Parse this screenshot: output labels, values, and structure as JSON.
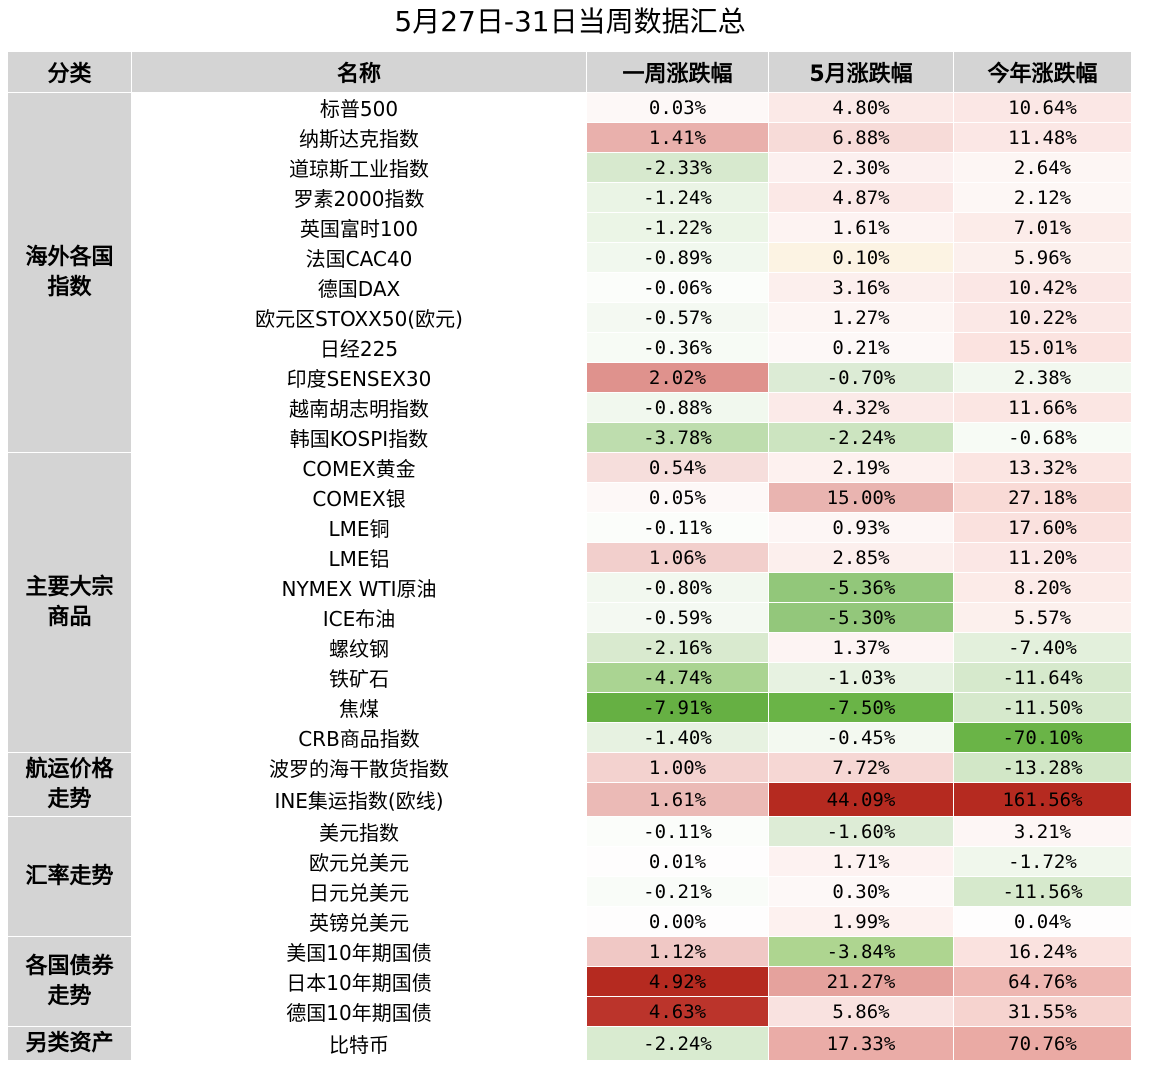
{
  "title": "5月27日-31日当周数据汇总",
  "chart_data": {
    "type": "table",
    "columns": [
      "分类",
      "名称",
      "一周涨跌幅",
      "5月涨跌幅",
      "今年涨跌幅"
    ],
    "groups": [
      {
        "category": "海外各国指数",
        "rows": [
          {
            "name": "标普500",
            "values": [
              "0.03%",
              "4.80%",
              "10.64%"
            ],
            "colors": [
              "#fdf8f7",
              "#fbe9e7",
              "#fbe7e5"
            ]
          },
          {
            "name": "纳斯达克指数",
            "values": [
              "1.41%",
              "6.88%",
              "11.48%"
            ],
            "colors": [
              "#e9b0ac",
              "#f7dbd8",
              "#fbe7e5"
            ]
          },
          {
            "name": "道琼斯工业指数",
            "values": [
              "-2.33%",
              "2.30%",
              "2.64%"
            ],
            "colors": [
              "#d7e9ce",
              "#fcf0ef",
              "#fdf6f4"
            ]
          },
          {
            "name": "罗素2000指数",
            "values": [
              "-1.24%",
              "4.87%",
              "2.12%"
            ],
            "colors": [
              "#eaf4e5",
              "#fbe8e6",
              "#fdf7f5"
            ]
          },
          {
            "name": "英国富时100",
            "values": [
              "-1.22%",
              "1.61%",
              "7.01%"
            ],
            "colors": [
              "#ebf5e6",
              "#fdf3f2",
              "#fcece9"
            ]
          },
          {
            "name": "法国CAC40",
            "values": [
              "-0.89%",
              "0.10%",
              "5.96%"
            ],
            "colors": [
              "#f1f8ee",
              "#fcf3e3",
              "#fcf0ed"
            ]
          },
          {
            "name": "德国DAX",
            "values": [
              "-0.06%",
              "3.16%",
              "10.42%"
            ],
            "colors": [
              "#fbfdfa",
              "#fcefed",
              "#fbe7e5"
            ]
          },
          {
            "name": "欧元区STOXX50(欧元)",
            "values": [
              "-0.57%",
              "1.27%",
              "10.22%"
            ],
            "colors": [
              "#f4f9f2",
              "#fdf5f3",
              "#fbe8e6"
            ]
          },
          {
            "name": "日经225",
            "values": [
              "-0.36%",
              "0.21%",
              "15.01%"
            ],
            "colors": [
              "#f7fbf5",
              "#fdf8f7",
              "#fbe3e0"
            ]
          },
          {
            "name": "印度SENSEX30",
            "values": [
              "2.02%",
              "-0.70%",
              "2.38%"
            ],
            "colors": [
              "#df928d",
              "#dcebd5",
              "#f2f8ef"
            ]
          },
          {
            "name": "越南胡志明指数",
            "values": [
              "-0.88%",
              "4.32%",
              "11.66%"
            ],
            "colors": [
              "#f1f8ee",
              "#fbeae8",
              "#fbe6e3"
            ]
          },
          {
            "name": "韩国KOSPI指数",
            "values": [
              "-3.78%",
              "-2.24%",
              "-0.68%"
            ],
            "colors": [
              "#bedd ae",
              "#cce4c0",
              "#f7fbf5"
            ]
          }
        ]
      },
      {
        "category": "主要大宗商品",
        "rows": [
          {
            "name": "COMEX黄金",
            "values": [
              "0.54%",
              "2.19%",
              "13.32%"
            ],
            "colors": [
              "#f6dedc",
              "#fdf1ef",
              "#fbe5e2"
            ]
          },
          {
            "name": "COMEX银",
            "values": [
              "0.05%",
              "15.00%",
              "27.18%"
            ],
            "colors": [
              "#fdf8f7",
              "#e9b4b0",
              "#f9dad6"
            ]
          },
          {
            "name": "LME铜",
            "values": [
              "-0.11%",
              "0.93%",
              "17.60%"
            ],
            "colors": [
              "#fbfdfa",
              "#fdf6f5",
              "#fae1de"
            ]
          },
          {
            "name": "LME铝",
            "values": [
              "1.06%",
              "2.85%",
              "11.20%"
            ],
            "colors": [
              "#f2cfcc",
              "#fcefed",
              "#fbe7e5"
            ]
          },
          {
            "name": "NYMEX WTI原油",
            "values": [
              "-0.80%",
              "-5.36%",
              "8.20%"
            ],
            "colors": [
              "#f2f8ef",
              "#92c77a",
              "#fcebe8"
            ]
          },
          {
            "name": "ICE布油",
            "values": [
              "-0.59%",
              "-5.30%",
              "5.57%"
            ],
            "colors": [
              "#f4f9f2",
              "#93c77b",
              "#fcf0ed"
            ]
          },
          {
            "name": "螺纹钢",
            "values": [
              "-2.16%",
              "1.37%",
              "-7.40%"
            ],
            "colors": [
              "#d9eacf",
              "#fdf4f3",
              "#e3f0dc"
            ]
          },
          {
            "name": "铁矿石",
            "values": [
              "-4.74%",
              "-1.03%",
              "-11.64%"
            ],
            "colors": [
              "#aad492",
              "#e7f2e1",
              "#d6e9cc"
            ]
          },
          {
            "name": "焦煤",
            "values": [
              "-7.91%",
              "-7.50%",
              "-11.50%"
            ],
            "colors": [
              "#66b043",
              "#6ab447",
              "#d6e9cc"
            ]
          },
          {
            "name": "CRB商品指数",
            "values": [
              "-1.40%",
              "-0.45%",
              "-70.10%"
            ],
            "colors": [
              "#e7f2e1",
              "#f3f9f0",
              "#6ab447"
            ]
          }
        ]
      },
      {
        "category": "航运价格走势",
        "rows": [
          {
            "name": "波罗的海干散货指数",
            "values": [
              "1.00%",
              "7.72%",
              "-13.28%"
            ],
            "colors": [
              "#f3d2cf",
              "#f6d7d4",
              "#d2e7c7"
            ]
          },
          {
            "name": "INE集运指数(欧线)",
            "values": [
              "1.61%",
              "44.09%",
              "161.56%"
            ],
            "colors": [
              "#ebbab6",
              "#b52a20",
              "#b52a20"
            ]
          }
        ]
      },
      {
        "category": "汇率走势",
        "rows": [
          {
            "name": "美元指数",
            "values": [
              "-0.11%",
              "-1.60%",
              "3.21%"
            ],
            "colors": [
              "#fbfdfa",
              "#ddecd6",
              "#fdf6f5"
            ]
          },
          {
            "name": "欧元兑美元",
            "values": [
              "0.01%",
              "1.71%",
              "-1.72%"
            ],
            "colors": [
              "#fefdfd",
              "#fdf2f1",
              "#f0f7ec"
            ]
          },
          {
            "name": "日元兑美元",
            "values": [
              "-0.21%",
              "0.30%",
              "-11.56%"
            ],
            "colors": [
              "#f9fcf8",
              "#fdf8f7",
              "#d6e9cc"
            ]
          },
          {
            "name": "英镑兑美元",
            "values": [
              "0.00%",
              "1.99%",
              "0.04%"
            ],
            "colors": [
              "#fefdfd",
              "#fdf1ef",
              "#fefdfd"
            ]
          }
        ]
      },
      {
        "category": "各国债券走势",
        "rows": [
          {
            "name": "美国10年期国债",
            "values": [
              "1.12%",
              "-3.84%",
              "16.24%"
            ],
            "colors": [
              "#f0c8c5",
              "#aed590",
              "#fae2df"
            ]
          },
          {
            "name": "日本10年期国债",
            "values": [
              "4.92%",
              "21.27%",
              "64.76%"
            ],
            "colors": [
              "#b52a20",
              "#e5a29d",
              "#eeb7b2"
            ]
          },
          {
            "name": "德国10年期国债",
            "values": [
              "4.63%",
              "5.86%",
              "31.55%"
            ],
            "colors": [
              "#bb342b",
              "#f9e2e0",
              "#f6d3cf"
            ]
          }
        ]
      },
      {
        "category": "另类资产",
        "rows": [
          {
            "name": "比特币",
            "values": [
              "-2.24%",
              "17.33%",
              "70.76%"
            ],
            "colors": [
              "#d9ebd0",
              "#eaaca7",
              "#eaaaa4"
            ]
          }
        ]
      }
    ]
  }
}
